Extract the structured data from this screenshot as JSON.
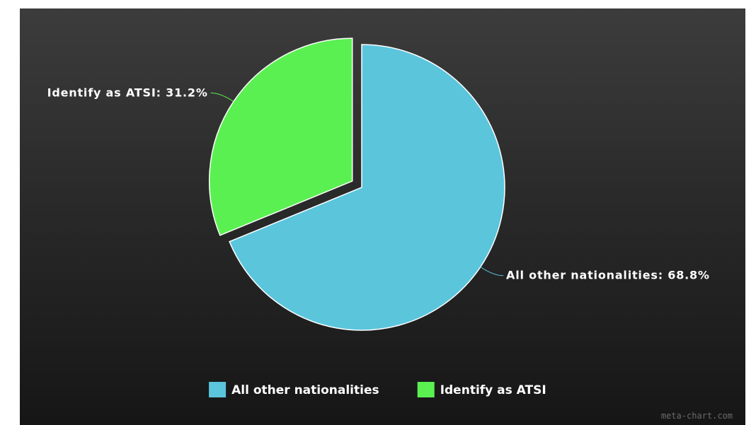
{
  "chart_data": {
    "type": "pie",
    "slices": [
      {
        "label": "All other nationalities",
        "value": 68.8,
        "color": "#5bc5dc",
        "data_label": "All other nationalities: 68.8%"
      },
      {
        "label": "Identify as ATSI",
        "value": 31.2,
        "color": "#5bf051",
        "data_label": "Identify as ATSI: 31.2%",
        "exploded": true
      }
    ],
    "legend": {
      "position": "bottom",
      "entries": [
        "All other nationalities",
        "Identify as ATSI"
      ]
    },
    "start_angle": "12 o'clock, clockwise",
    "background": "#2a2a2a"
  },
  "watermark": "meta-chart.com"
}
